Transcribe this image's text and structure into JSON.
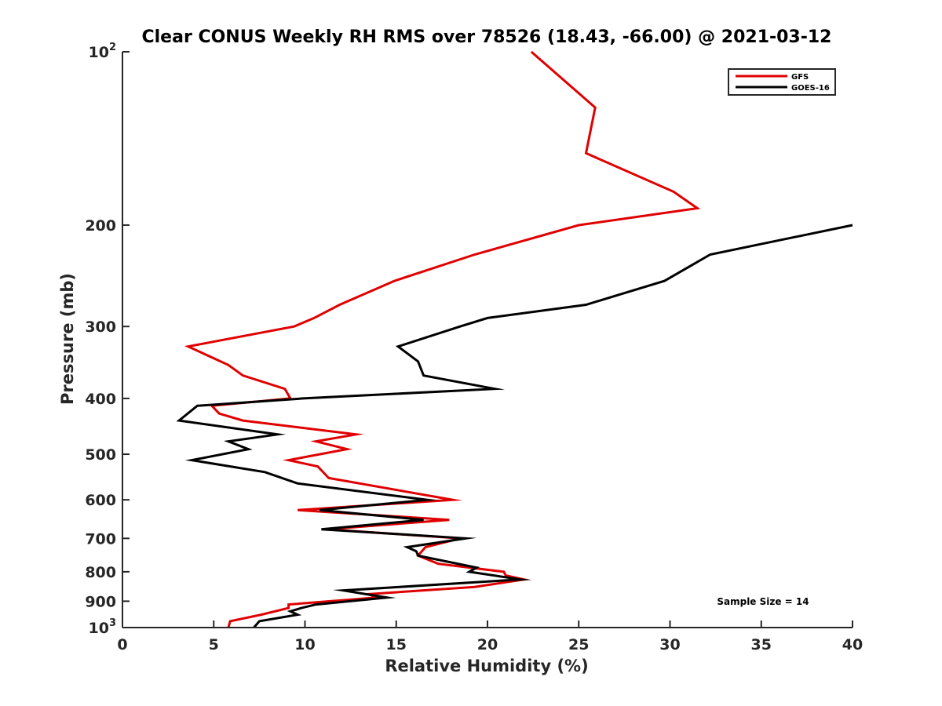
{
  "chart_data": {
    "type": "line",
    "title": "Clear CONUS Weekly RH RMS over 78526 (18.43, -66.00) @ 2021-03-12",
    "xlabel": "Relative Humidity (%)",
    "ylabel": "Pressure (mb)",
    "xlim": [
      0,
      40
    ],
    "ylim": [
      100,
      1000
    ],
    "y_scale": "log",
    "y_direction": "reversed",
    "grid": false,
    "legend_position": "top-right",
    "x_ticks": [
      "0",
      "5",
      "10",
      "15",
      "20",
      "25",
      "30",
      "35",
      "40"
    ],
    "y_ticks": [
      {
        "value": 100,
        "label": "10",
        "exponent": "2"
      },
      {
        "value": 200,
        "label": "200"
      },
      {
        "value": 300,
        "label": "300"
      },
      {
        "value": 400,
        "label": "400"
      },
      {
        "value": 500,
        "label": "500"
      },
      {
        "value": 600,
        "label": "600"
      },
      {
        "value": 700,
        "label": "700"
      },
      {
        "value": 800,
        "label": "800"
      },
      {
        "value": 900,
        "label": "900"
      },
      {
        "value": 1000,
        "label": "10",
        "exponent": "3"
      }
    ],
    "series": [
      {
        "name": "GFS",
        "color": "#e00000",
        "points": [
          [
            22.4,
            100
          ],
          [
            25.9,
            125
          ],
          [
            25.4,
            150
          ],
          [
            30.2,
            175
          ],
          [
            31.5,
            187
          ],
          [
            25.0,
            200
          ],
          [
            19.3,
            225
          ],
          [
            14.9,
            250
          ],
          [
            11.9,
            275
          ],
          [
            10.5,
            290
          ],
          [
            9.4,
            300
          ],
          [
            3.6,
            325
          ],
          [
            5.8,
            350
          ],
          [
            6.6,
            365
          ],
          [
            8.9,
            385
          ],
          [
            9.2,
            400
          ],
          [
            4.9,
            412
          ],
          [
            5.3,
            425
          ],
          [
            6.6,
            437
          ],
          [
            12.8,
            462
          ],
          [
            10.6,
            475
          ],
          [
            12.3,
            490
          ],
          [
            9.1,
            512
          ],
          [
            10.7,
            525
          ],
          [
            11.3,
            550
          ],
          [
            18.1,
            600
          ],
          [
            9.6,
            625
          ],
          [
            17.9,
            650
          ],
          [
            11.2,
            675
          ],
          [
            18.5,
            700
          ],
          [
            16.6,
            725
          ],
          [
            16.2,
            750
          ],
          [
            17.3,
            775
          ],
          [
            20.9,
            800
          ],
          [
            21.0,
            812
          ],
          [
            22.0,
            825
          ],
          [
            19.3,
            850
          ],
          [
            13.5,
            875
          ],
          [
            13.9,
            887
          ],
          [
            9.1,
            912
          ],
          [
            9.1,
            925
          ],
          [
            7.6,
            950
          ],
          [
            5.9,
            975
          ],
          [
            5.8,
            1000
          ]
        ]
      },
      {
        "name": "GOES-16",
        "color": "#000000",
        "points": [
          [
            40.0,
            200
          ],
          [
            32.2,
            225
          ],
          [
            29.7,
            250
          ],
          [
            25.4,
            275
          ],
          [
            20.0,
            290
          ],
          [
            18.5,
            300
          ],
          [
            15.1,
            325
          ],
          [
            16.2,
            345
          ],
          [
            16.5,
            365
          ],
          [
            20.4,
            385
          ],
          [
            9.9,
            400
          ],
          [
            4.1,
            412
          ],
          [
            3.1,
            437
          ],
          [
            8.5,
            462
          ],
          [
            5.8,
            475
          ],
          [
            6.9,
            490
          ],
          [
            3.8,
            512
          ],
          [
            7.8,
            537
          ],
          [
            9.6,
            562
          ],
          [
            16.7,
            600
          ],
          [
            10.8,
            625
          ],
          [
            16.5,
            650
          ],
          [
            10.9,
            675
          ],
          [
            18.8,
            700
          ],
          [
            15.6,
            725
          ],
          [
            16.1,
            737
          ],
          [
            16.2,
            750
          ],
          [
            19.4,
            787
          ],
          [
            19.0,
            800
          ],
          [
            21.8,
            825
          ],
          [
            12.1,
            862
          ],
          [
            14.5,
            887
          ],
          [
            10.6,
            912
          ],
          [
            9.8,
            925
          ],
          [
            9.2,
            937
          ],
          [
            9.6,
            950
          ],
          [
            7.5,
            975
          ],
          [
            7.2,
            1000
          ]
        ]
      }
    ],
    "annotation": "Sample Size = 14"
  }
}
